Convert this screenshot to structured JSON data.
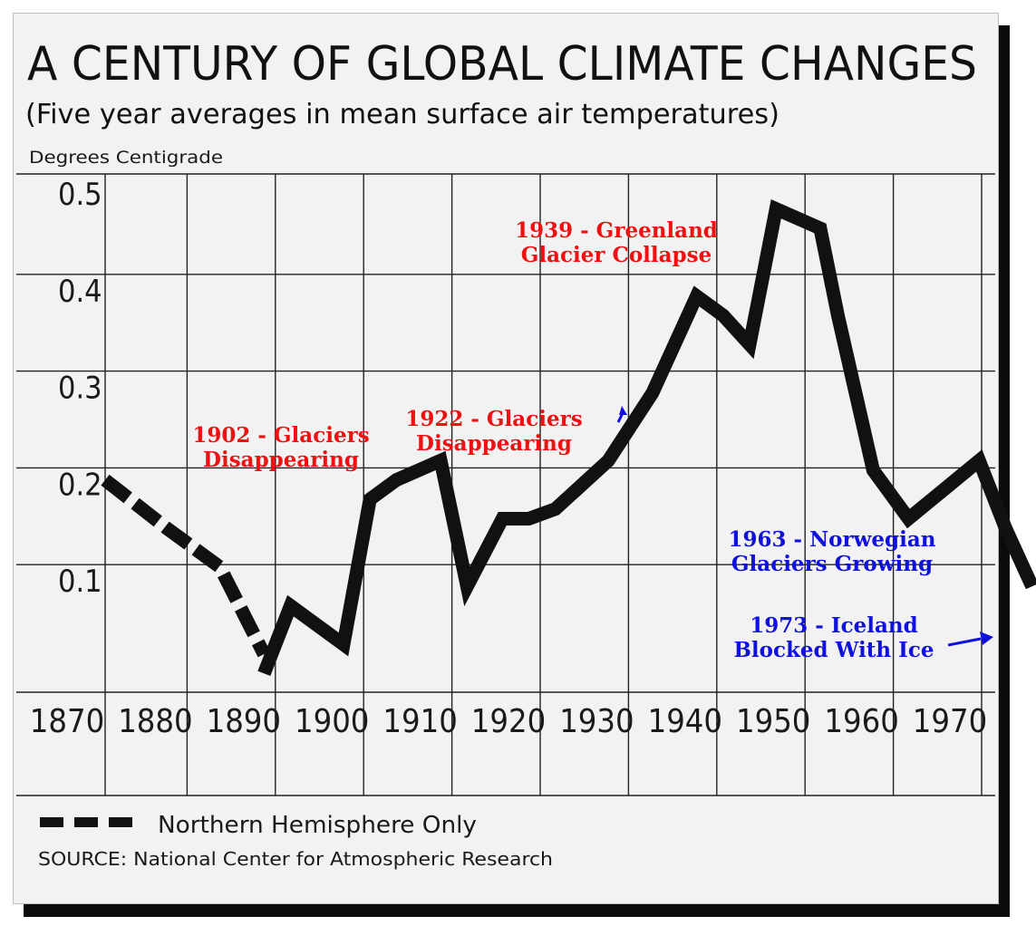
{
  "chart_data": {
    "type": "line",
    "title": "A CENTURY OF GLOBAL CLIMATE CHANGES",
    "subtitle": "(Five year averages in mean surface air temperatures)",
    "ylabel": "Degrees Centigrade",
    "xlabel": "",
    "xlim": [
      1870,
      1975
    ],
    "ylim": [
      0.0,
      0.53
    ],
    "x_ticks": [
      "1870",
      "1880",
      "1890",
      "1900",
      "1910",
      "1920",
      "1930",
      "1940",
      "1950",
      "1960",
      "1970"
    ],
    "x_tick_values": [
      1870,
      1880,
      1890,
      1900,
      1910,
      1920,
      1930,
      1940,
      1950,
      1960,
      1970
    ],
    "y_ticks": [
      "0.5",
      "0.4",
      "0.3",
      "0.2",
      "0.1"
    ],
    "y_tick_values": [
      0.5,
      0.4,
      0.3,
      0.2,
      0.1
    ],
    "grid": true,
    "series": [
      {
        "name": "Northern Hemisphere Only",
        "style": "dashed",
        "color": "#111111",
        "x": [
          1870,
          1877,
          1883,
          1888
        ],
        "y": [
          0.21,
          0.16,
          0.12,
          0.03
        ]
      },
      {
        "name": "",
        "style": "solid",
        "color": "#111111",
        "x": [
          1888,
          1891,
          1897,
          1900,
          1903,
          1908,
          1911,
          1915,
          1918,
          1921,
          1927,
          1932,
          1935,
          1937,
          1940,
          1943,
          1946,
          1951,
          1953,
          1957,
          1961,
          1965,
          1969,
          1972,
          1975
        ],
        "y": [
          0.01,
          0.08,
          0.04,
          0.19,
          0.21,
          0.23,
          0.1,
          0.17,
          0.17,
          0.18,
          0.23,
          0.3,
          0.36,
          0.4,
          0.38,
          0.35,
          0.49,
          0.47,
          0.38,
          0.22,
          0.17,
          0.2,
          0.23,
          0.16,
          0.1
        ]
      }
    ],
    "annotations": [
      {
        "lines": [
          "1902 - Glaciers",
          "Disappearing"
        ],
        "color": "#ee1111"
      },
      {
        "lines": [
          "1922 - Glaciers",
          "Disappearing"
        ],
        "color": "#ee1111"
      },
      {
        "lines": [
          "1939 - Greenland",
          "Glacier Collapse"
        ],
        "color": "#ee1111"
      },
      {
        "lines": [
          "1963 - Norwegian",
          "Glaciers Growing"
        ],
        "color": "#1111dd"
      },
      {
        "lines": [
          "1973 - Iceland",
          "Blocked With Ice"
        ],
        "color": "#1111dd"
      }
    ],
    "legend": {
      "label": "Northern Hemisphere Only",
      "placement": "bottom-left"
    },
    "source": "SOURCE: National Center for Atmospheric Research"
  }
}
